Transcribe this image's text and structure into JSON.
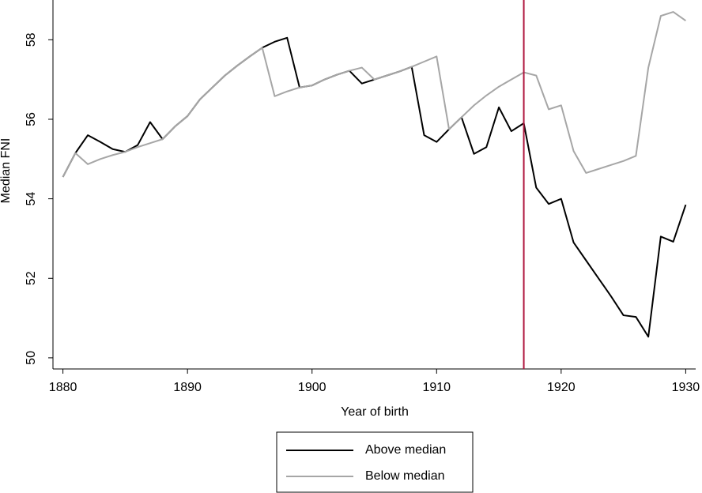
{
  "chart_data": {
    "type": "line",
    "x_label": "Year of birth",
    "y_label": "Median FNI",
    "x": [
      1880,
      1881,
      1882,
      1883,
      1884,
      1885,
      1886,
      1887,
      1888,
      1889,
      1890,
      1891,
      1892,
      1893,
      1894,
      1895,
      1896,
      1897,
      1898,
      1899,
      1900,
      1901,
      1902,
      1903,
      1904,
      1905,
      1906,
      1907,
      1908,
      1909,
      1910,
      1911,
      1912,
      1913,
      1914,
      1915,
      1916,
      1917,
      1918,
      1919,
      1920,
      1921,
      1922,
      1923,
      1924,
      1925,
      1926,
      1927,
      1928,
      1929,
      1930
    ],
    "series": [
      {
        "name": "Above median",
        "color": "#000000",
        "values": [
          54.55,
          55.15,
          55.6,
          55.43,
          55.25,
          55.18,
          55.35,
          55.93,
          55.5,
          55.82,
          56.08,
          56.5,
          56.8,
          57.1,
          57.35,
          57.58,
          57.8,
          57.95,
          58.05,
          56.8,
          56.85,
          57.0,
          57.12,
          57.22,
          56.9,
          57.0,
          57.1,
          57.2,
          57.32,
          55.6,
          55.43,
          55.75,
          56.05,
          55.13,
          55.3,
          56.3,
          55.7,
          55.9,
          54.28,
          53.87,
          54.0,
          52.9,
          52.45,
          52.0,
          51.55,
          51.07,
          51.03,
          50.53,
          53.05,
          52.92,
          53.85
        ]
      },
      {
        "name": "Below median",
        "color": "#a6a6a6",
        "values": [
          54.55,
          55.15,
          54.87,
          55.0,
          55.1,
          55.18,
          55.3,
          55.4,
          55.5,
          55.82,
          56.08,
          56.5,
          56.8,
          57.1,
          57.35,
          57.58,
          57.8,
          56.58,
          56.7,
          56.8,
          56.85,
          57.0,
          57.12,
          57.22,
          57.3,
          57.0,
          57.1,
          57.2,
          57.32,
          57.45,
          57.58,
          55.75,
          56.05,
          56.35,
          56.6,
          56.82,
          57.0,
          57.18,
          57.1,
          56.25,
          56.35,
          55.2,
          54.65,
          54.75,
          54.85,
          54.95,
          55.08,
          57.3,
          58.6,
          58.7,
          58.48
        ]
      }
    ],
    "vline": 1917,
    "vline_color": "#b0173f",
    "xlim": [
      1879.2,
      1930.8
    ],
    "ylim": [
      49.72,
      59
    ],
    "xticks": [
      1880,
      1890,
      1900,
      1910,
      1920,
      1930
    ],
    "yticks": [
      50,
      52,
      54,
      56,
      58
    ],
    "grid": false,
    "legend": "bottom"
  }
}
